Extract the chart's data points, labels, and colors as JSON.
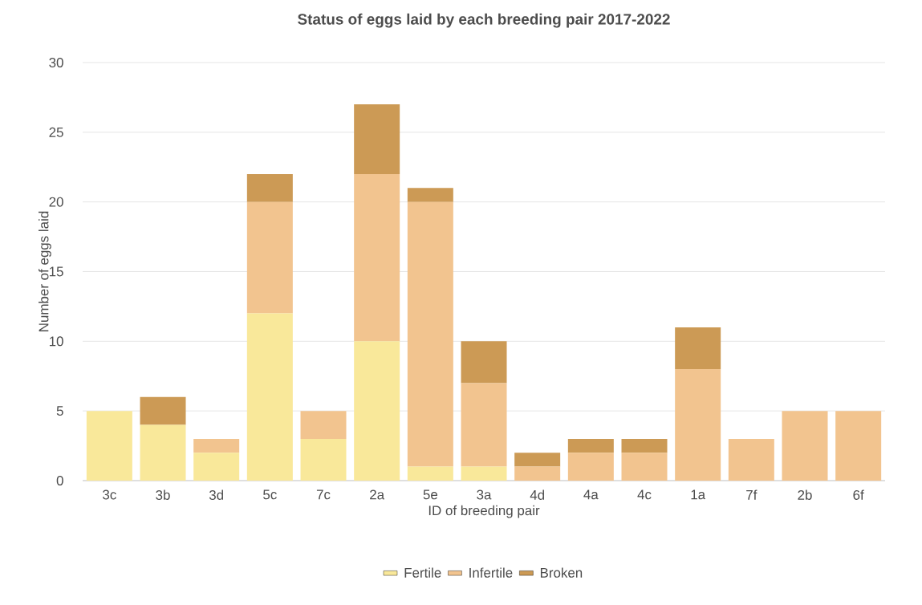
{
  "chart_data": {
    "type": "bar",
    "title": "Status of eggs laid by each breeding pair 2017-2022",
    "xlabel": "ID of breeding pair",
    "ylabel": "Number of eggs laid",
    "categories": [
      "3c",
      "3b",
      "3d",
      "5c",
      "7c",
      "2a",
      "5e",
      "3a",
      "4d",
      "4a",
      "4c",
      "1a",
      "7f",
      "2b",
      "6f"
    ],
    "stacked": true,
    "series": [
      {
        "name": "Fertile",
        "color": "#f9e89a",
        "values": [
          5,
          4,
          2,
          12,
          3,
          10,
          1,
          1,
          0,
          0,
          0,
          0,
          0,
          0,
          0
        ]
      },
      {
        "name": "Infertile",
        "color": "#f2c48f",
        "values": [
          0,
          0,
          1,
          8,
          2,
          12,
          19,
          6,
          1,
          2,
          2,
          8,
          3,
          5,
          5
        ]
      },
      {
        "name": "Broken",
        "color": "#cc9a55",
        "values": [
          0,
          2,
          0,
          2,
          0,
          5,
          1,
          3,
          1,
          1,
          1,
          3,
          0,
          0,
          0
        ]
      }
    ],
    "ylim": [
      0,
      30
    ],
    "yticks": [
      0,
      5,
      10,
      15,
      20,
      25,
      30
    ],
    "grid": "y",
    "legend": "bottom"
  }
}
